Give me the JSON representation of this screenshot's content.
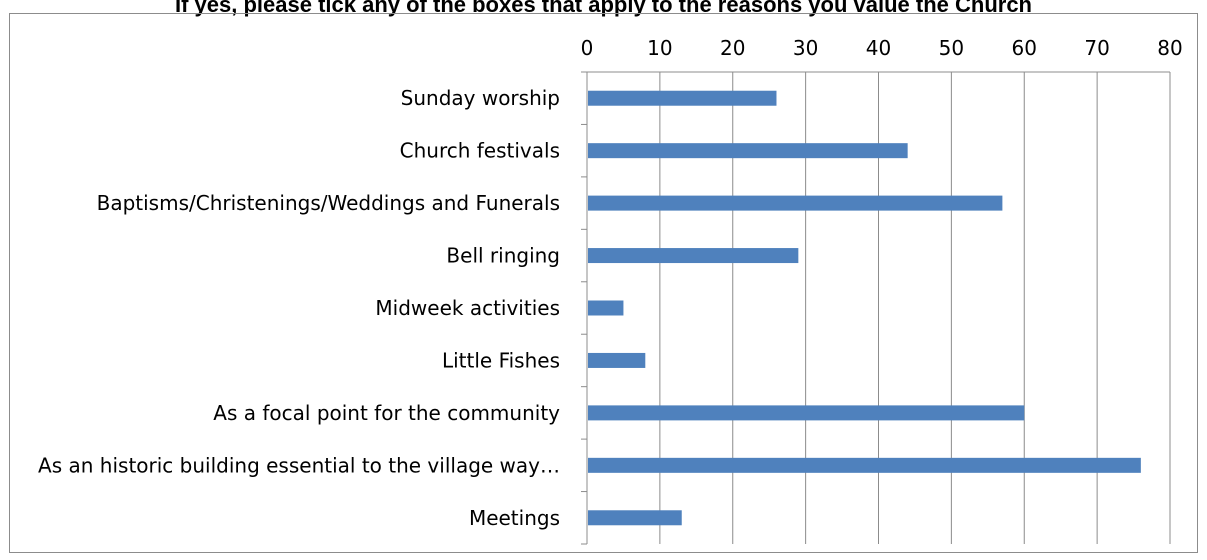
{
  "chart_data": {
    "type": "bar",
    "orientation": "horizontal",
    "title": "If yes, please tick any of the boxes that apply to the reasons you value the Church",
    "categories": [
      "Sunday worship",
      "Church festivals",
      "Baptisms/Christenings/Weddings and Funerals",
      "Bell ringing",
      "Midweek activities",
      "Little Fishes",
      "As a focal point for the community",
      "As an historic building essential to the village way…",
      "Meetings"
    ],
    "values": [
      26,
      44,
      57,
      29,
      5,
      8,
      60,
      76,
      13
    ],
    "xlim": [
      0,
      80
    ],
    "xticks": [
      0,
      10,
      20,
      30,
      40,
      50,
      60,
      70,
      80
    ],
    "xaxis_position": "top",
    "grid": true,
    "legend": "none",
    "bar_color": "#4f81bd",
    "grid_color": "#8c8c8c"
  }
}
